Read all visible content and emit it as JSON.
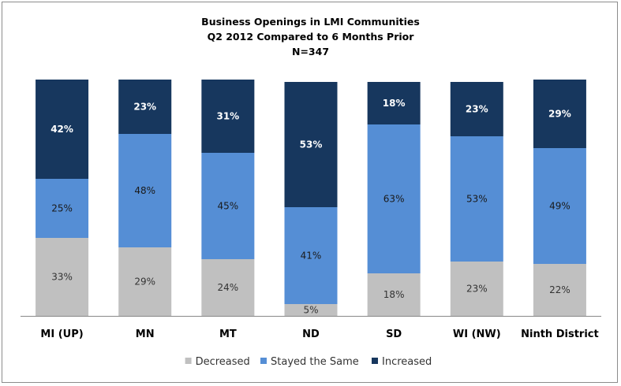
{
  "chart_data": {
    "type": "bar",
    "stacked": true,
    "title_lines": [
      "Business Openings in LMI Communities",
      "Q2 2012 Compared to 6 Months Prior",
      "N=347"
    ],
    "categories": [
      "MI (UP)",
      "MN",
      "MT",
      "ND",
      "SD",
      "WI (NW)",
      "Ninth District"
    ],
    "series": [
      {
        "name": "Decreased",
        "color": "#c0c0c0",
        "label_color": "#333333",
        "values": [
          33,
          29,
          24,
          5,
          18,
          23,
          22
        ]
      },
      {
        "name": "Stayed the Same",
        "color": "#558ed5",
        "label_color": "#1a1a1a",
        "values": [
          25,
          48,
          45,
          41,
          63,
          53,
          49
        ]
      },
      {
        "name": "Increased",
        "color": "#17375e",
        "label_color": "#ffffff",
        "values": [
          42,
          23,
          31,
          53,
          18,
          23,
          29
        ]
      }
    ],
    "value_suffix": "%",
    "ylim": [
      0,
      100
    ],
    "legend_position": "bottom",
    "grid": false,
    "xlabel": "",
    "ylabel": ""
  }
}
